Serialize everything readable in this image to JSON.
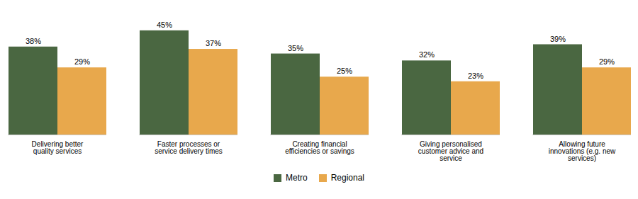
{
  "chart_data": {
    "type": "bar",
    "categories": [
      "Delivering better\nquality services",
      "Faster processes or\nservice delivery times",
      "Creating financial\nefficiencies or savings",
      "Giving personalised\ncustomer advice and\nservice",
      "Allowing future\ninnovations (e.g. new\nservices)"
    ],
    "series": [
      {
        "name": "Metro",
        "color": "#4a6741",
        "values": [
          38,
          45,
          35,
          32,
          39
        ],
        "value_labels": [
          "38%",
          "45%",
          "35%",
          "32%",
          "39%"
        ]
      },
      {
        "name": "Regional",
        "color": "#e8a84c",
        "values": [
          29,
          37,
          25,
          23,
          29
        ],
        "value_labels": [
          "29%",
          "37%",
          "25%",
          "23%",
          "29%"
        ]
      }
    ],
    "ylim": [
      0,
      52
    ],
    "grid": false,
    "legend": "bottom",
    "data_labels": true,
    "tick_labels": "x"
  }
}
